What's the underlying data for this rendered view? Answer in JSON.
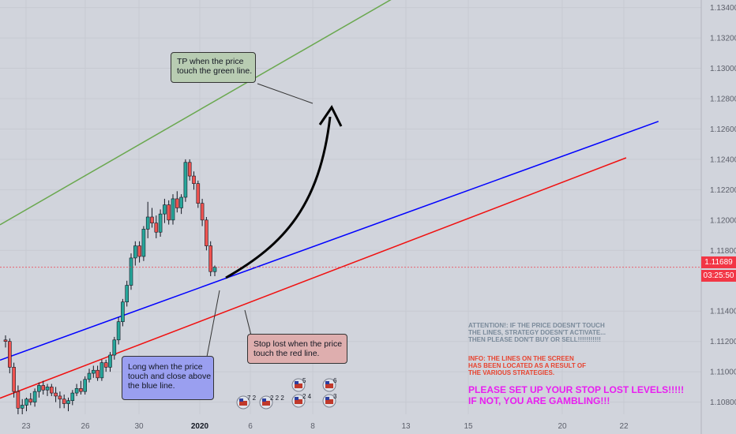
{
  "chart_data": {
    "type": "candlestick",
    "x_ticks": [
      "23",
      "26",
      "30",
      "2020",
      "6",
      "8",
      "13",
      "15",
      "20",
      "22"
    ],
    "y_ticks": [
      "1.13400",
      "1.13200",
      "1.13000",
      "1.12800",
      "1.12600",
      "1.12400",
      "1.12200",
      "1.12000",
      "1.11800",
      "1.11400",
      "1.11200",
      "1.11000",
      "1.10800"
    ],
    "ylim": [
      1.1072,
      1.1345
    ],
    "current_price": "1.11689",
    "countdown": "03:25:50",
    "candles": [
      {
        "o": 1.1121,
        "h": 1.1124,
        "l": 1.1116,
        "c": 1.112
      },
      {
        "o": 1.112,
        "h": 1.1122,
        "l": 1.1099,
        "c": 1.1103
      },
      {
        "o": 1.1103,
        "h": 1.1106,
        "l": 1.1083,
        "c": 1.1087
      },
      {
        "o": 1.1087,
        "h": 1.1091,
        "l": 1.1072,
        "c": 1.1076
      },
      {
        "o": 1.1076,
        "h": 1.1082,
        "l": 1.1072,
        "c": 1.1078
      },
      {
        "o": 1.1078,
        "h": 1.1083,
        "l": 1.1074,
        "c": 1.1082
      },
      {
        "o": 1.1082,
        "h": 1.1086,
        "l": 1.1078,
        "c": 1.108
      },
      {
        "o": 1.108,
        "h": 1.1089,
        "l": 1.1077,
        "c": 1.1087
      },
      {
        "o": 1.1087,
        "h": 1.1093,
        "l": 1.1083,
        "c": 1.1091
      },
      {
        "o": 1.1091,
        "h": 1.1094,
        "l": 1.1085,
        "c": 1.1088
      },
      {
        "o": 1.1088,
        "h": 1.1092,
        "l": 1.1084,
        "c": 1.109
      },
      {
        "o": 1.109,
        "h": 1.1092,
        "l": 1.1084,
        "c": 1.1086
      },
      {
        "o": 1.1086,
        "h": 1.109,
        "l": 1.108,
        "c": 1.1084
      },
      {
        "o": 1.1084,
        "h": 1.1087,
        "l": 1.1076,
        "c": 1.1082
      },
      {
        "o": 1.1082,
        "h": 1.1085,
        "l": 1.1076,
        "c": 1.1079
      },
      {
        "o": 1.1079,
        "h": 1.1083,
        "l": 1.1074,
        "c": 1.1081
      },
      {
        "o": 1.1081,
        "h": 1.1088,
        "l": 1.1078,
        "c": 1.1086
      },
      {
        "o": 1.1086,
        "h": 1.1092,
        "l": 1.1084,
        "c": 1.1089
      },
      {
        "o": 1.1089,
        "h": 1.1094,
        "l": 1.1085,
        "c": 1.1087
      },
      {
        "o": 1.1087,
        "h": 1.1097,
        "l": 1.1085,
        "c": 1.1095
      },
      {
        "o": 1.1095,
        "h": 1.1102,
        "l": 1.1093,
        "c": 1.1099
      },
      {
        "o": 1.1099,
        "h": 1.1104,
        "l": 1.1096,
        "c": 1.1101
      },
      {
        "o": 1.1101,
        "h": 1.1104,
        "l": 1.1094,
        "c": 1.1096
      },
      {
        "o": 1.1096,
        "h": 1.1108,
        "l": 1.1094,
        "c": 1.1106
      },
      {
        "o": 1.1106,
        "h": 1.1108,
        "l": 1.11,
        "c": 1.1103
      },
      {
        "o": 1.1103,
        "h": 1.1113,
        "l": 1.11,
        "c": 1.1111
      },
      {
        "o": 1.1111,
        "h": 1.1123,
        "l": 1.1108,
        "c": 1.1121
      },
      {
        "o": 1.1121,
        "h": 1.1136,
        "l": 1.1118,
        "c": 1.1133
      },
      {
        "o": 1.1133,
        "h": 1.1148,
        "l": 1.113,
        "c": 1.1146
      },
      {
        "o": 1.1146,
        "h": 1.116,
        "l": 1.1143,
        "c": 1.1157
      },
      {
        "o": 1.1157,
        "h": 1.1178,
        "l": 1.1154,
        "c": 1.1175
      },
      {
        "o": 1.1175,
        "h": 1.1186,
        "l": 1.117,
        "c": 1.1183
      },
      {
        "o": 1.1183,
        "h": 1.1186,
        "l": 1.1172,
        "c": 1.1176
      },
      {
        "o": 1.1176,
        "h": 1.1196,
        "l": 1.1173,
        "c": 1.1194
      },
      {
        "o": 1.1194,
        "h": 1.1212,
        "l": 1.1188,
        "c": 1.1202
      },
      {
        "o": 1.1202,
        "h": 1.1208,
        "l": 1.1195,
        "c": 1.1198
      },
      {
        "o": 1.1198,
        "h": 1.1203,
        "l": 1.1188,
        "c": 1.1192
      },
      {
        "o": 1.1192,
        "h": 1.1207,
        "l": 1.1189,
        "c": 1.1204
      },
      {
        "o": 1.1204,
        "h": 1.1214,
        "l": 1.1198,
        "c": 1.121
      },
      {
        "o": 1.121,
        "h": 1.1213,
        "l": 1.1197,
        "c": 1.12
      },
      {
        "o": 1.12,
        "h": 1.1217,
        "l": 1.1197,
        "c": 1.1214
      },
      {
        "o": 1.1214,
        "h": 1.1219,
        "l": 1.1205,
        "c": 1.1208
      },
      {
        "o": 1.1208,
        "h": 1.1217,
        "l": 1.1204,
        "c": 1.1215
      },
      {
        "o": 1.1215,
        "h": 1.124,
        "l": 1.1212,
        "c": 1.1238
      },
      {
        "o": 1.1238,
        "h": 1.124,
        "l": 1.1226,
        "c": 1.1229
      },
      {
        "o": 1.1229,
        "h": 1.1232,
        "l": 1.122,
        "c": 1.1224
      },
      {
        "o": 1.1224,
        "h": 1.1226,
        "l": 1.1208,
        "c": 1.1211
      },
      {
        "o": 1.1211,
        "h": 1.1214,
        "l": 1.1196,
        "c": 1.12
      },
      {
        "o": 1.12,
        "h": 1.1202,
        "l": 1.118,
        "c": 1.1183
      },
      {
        "o": 1.1183,
        "h": 1.1186,
        "l": 1.1163,
        "c": 1.1166
      },
      {
        "o": 1.1166,
        "h": 1.117,
        "l": 1.1163,
        "c": 1.1169
      }
    ],
    "lines": [
      {
        "name": "green",
        "color": "#6aa84f",
        "p1": [
          0,
          1.1199
        ],
        "p2": [
          51,
          1.128
        ],
        "extend_to": 1.1346
      },
      {
        "name": "blue",
        "color": "#0000ff",
        "p1": [
          0,
          1.1109
        ],
        "p2": [
          51,
          1.116
        ],
        "extend_to": 1.1265
      },
      {
        "name": "red",
        "color": "#f01010",
        "p1": [
          0,
          1.1084
        ],
        "p2": [
          51,
          1.1138
        ],
        "extend_to": 1.1241
      }
    ],
    "colors": {
      "up": "#26a69a",
      "down": "#ef5350",
      "price_tag": "#f23645"
    }
  },
  "notes": {
    "tp": {
      "lines": [
        "TP when the price",
        "touch the green line."
      ],
      "fill": "#b8ccb2",
      "border": "#333333"
    },
    "long": {
      "lines": [
        "Long when the price",
        "touch and close above",
        "the blue line."
      ],
      "fill": "#9a9ff0",
      "border": "#333333"
    },
    "stop": {
      "lines": [
        "Stop lost when the price",
        "touch the red line."
      ],
      "fill": "#deaeae",
      "border": "#333333"
    }
  },
  "info": {
    "attention": [
      "ATTENTION!: IF THE PRICE DOESN'T TOUCH",
      "THE LINES, STRATEGY DOESN'T ACTIVATE...",
      "THEN PLEASE DON'T BUY OR SELL!!!!!!!!!!!"
    ],
    "info_lines": [
      "INFO: THE LINES ON THE SCREEN",
      "HAS BEEN LOCATED AS A RESULT OF",
      "THE VARIOUS STRATEGIES."
    ],
    "warning": [
      "PLEASE SET UP YOUR STOP LOST LEVELS!!!!!",
      "IF NOT, YOU ARE GAMBLING!!!"
    ],
    "attention_color": "#7a8a9a",
    "info_color": "#e8432f",
    "warning_color": "#e91ef0"
  },
  "events": [
    {
      "badge": "7 2"
    },
    {
      "badge": "2 2 2"
    },
    {
      "badge": "5"
    },
    {
      "badge": "2 4"
    },
    {
      "badge": "6"
    },
    {
      "badge": "3"
    }
  ]
}
